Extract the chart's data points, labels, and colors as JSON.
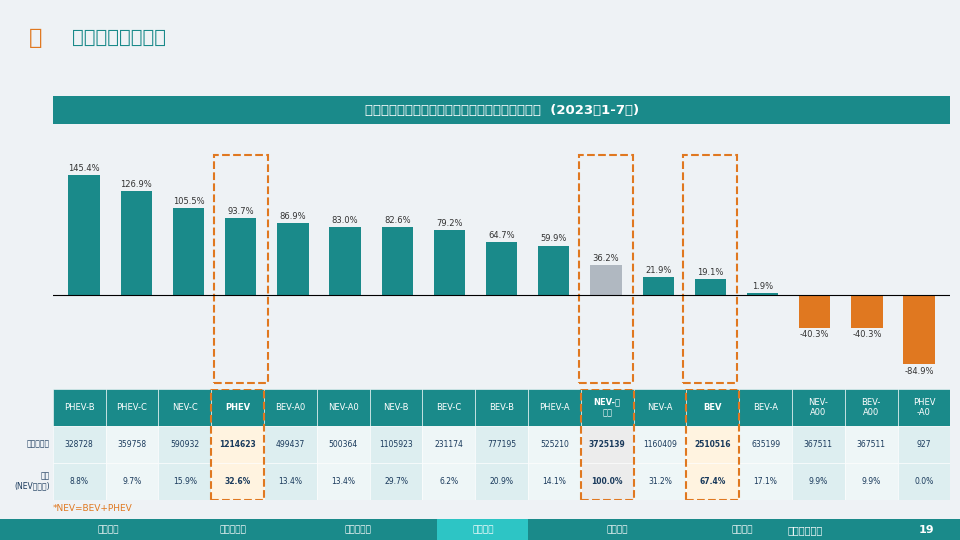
{
  "title": "新能源市场各级别不同技术类型增速、销量和份额  (2023年1-7月)",
  "page_title": "级别定位细分市场",
  "categories": [
    "PHEV-B",
    "PHEV-C",
    "NEV-C",
    "PHEV",
    "BEV-A0",
    "NEV-A0",
    "NEV-B",
    "BEV-C",
    "BEV-B",
    "PHEV-A",
    "NEV-总\n市场",
    "NEV-A",
    "BEV",
    "BEV-A",
    "NEV-\nA00",
    "BEV-\nA00",
    "PHEV-\nA0"
  ],
  "categories_plain": [
    "PHEV-B",
    "PHEV-C",
    "NEV-C",
    "PHEV",
    "BEV-A0",
    "NEV-A0",
    "NEV-B",
    "BEV-C",
    "BEV-B",
    "PHEV-A",
    "NEV-总市场",
    "NEV-A",
    "BEV",
    "BEV-A",
    "NEV-A00",
    "BEV-A00",
    "PHEV-A0"
  ],
  "values": [
    145.4,
    126.9,
    105.5,
    93.7,
    86.9,
    83.0,
    82.6,
    79.2,
    64.7,
    59.9,
    36.2,
    21.9,
    19.1,
    1.9,
    -40.3,
    -40.3,
    -84.9
  ],
  "bar_colors": [
    "#1a8a8a",
    "#1a8a8a",
    "#1a8a8a",
    "#1a8a8a",
    "#1a8a8a",
    "#1a8a8a",
    "#1a8a8a",
    "#1a8a8a",
    "#1a8a8a",
    "#1a8a8a",
    "#b0b8c1",
    "#1a8a8a",
    "#1a8a8a",
    "#1a8a8a",
    "#e07820",
    "#e07820",
    "#e07820"
  ],
  "sales": [
    "328728",
    "359758",
    "590932",
    "1214623",
    "499437",
    "500364",
    "1105923",
    "231174",
    "777195",
    "525210",
    "3725139",
    "1160409",
    "2510516",
    "635199",
    "367511",
    "367511",
    "927"
  ],
  "share": [
    "8.8%",
    "9.7%",
    "15.9%",
    "32.6%",
    "13.4%",
    "13.4%",
    "29.7%",
    "6.2%",
    "20.9%",
    "14.1%",
    "100.0%",
    "31.2%",
    "67.4%",
    "17.1%",
    "9.9%",
    "9.9%",
    "0.0%"
  ],
  "teal_color": "#1a8a8a",
  "orange_color": "#e07820",
  "gray_bar_color": "#b0b8c1",
  "header_bg": "#1a8a8a",
  "header_text": "#ffffff",
  "background_color": "#eef2f5",
  "note": "*NEV=BEV+PHEV",
  "page_num": "19",
  "bottom_label": "深度分析报告",
  "nav_items": [
    "数据说明",
    "乘用车大盘",
    "新能源大盘",
    "级别定位",
    "价格段位",
    "品牌企业"
  ],
  "active_nav": "级别定位"
}
